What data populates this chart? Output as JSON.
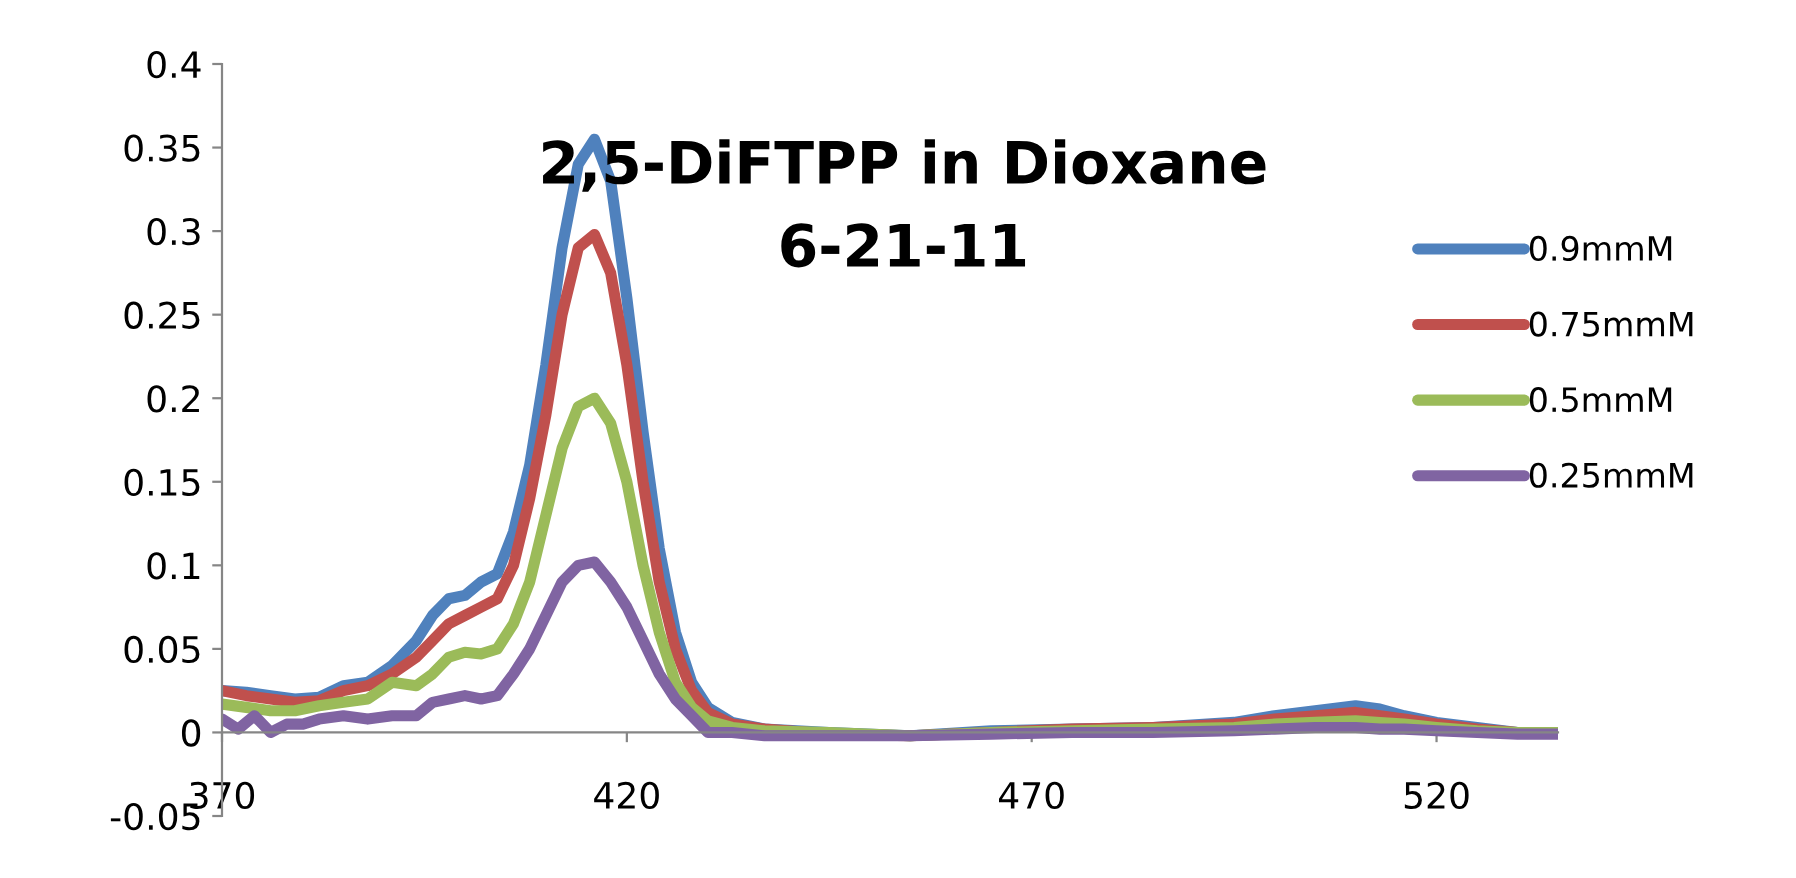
{
  "chart_data": {
    "type": "line",
    "title": "2,5-DiFTPP in Dioxane\n6-21-11",
    "xlim": [
      370,
      535
    ],
    "ylim": [
      -0.05,
      0.4
    ],
    "xticks": [
      370,
      420,
      470,
      520
    ],
    "yticks": [
      -0.05,
      0,
      0.05,
      0.1,
      0.15,
      0.2,
      0.25,
      0.3,
      0.35,
      0.4
    ],
    "grid": false,
    "legend": "right",
    "marker": "none",
    "line_style": "solid",
    "series": [
      {
        "name": "0.9mmM",
        "color": "#4f81bd",
        "x": [
          370,
          373,
          376,
          379,
          382,
          385,
          388,
          391,
          394,
          396,
          398,
          400,
          402,
          404,
          406,
          408,
          410,
          412,
          414,
          416,
          418,
          420,
          422,
          424,
          426,
          428,
          430,
          433,
          437,
          445,
          455,
          465,
          475,
          485,
          495,
          500,
          505,
          510,
          513,
          516,
          520,
          525,
          530,
          535
        ],
        "values": [
          0.025,
          0.024,
          0.022,
          0.02,
          0.021,
          0.028,
          0.03,
          0.04,
          0.055,
          0.07,
          0.08,
          0.082,
          0.09,
          0.095,
          0.12,
          0.16,
          0.22,
          0.29,
          0.34,
          0.355,
          0.33,
          0.26,
          0.18,
          0.11,
          0.06,
          0.03,
          0.015,
          0.006,
          0.002,
          0.0,
          -0.002,
          0.001,
          0.002,
          0.003,
          0.006,
          0.01,
          0.013,
          0.016,
          0.014,
          0.01,
          0.006,
          0.003,
          0.0,
          0.0
        ]
      },
      {
        "name": "0.75mmM",
        "color": "#c0504d",
        "x": [
          370,
          373,
          376,
          379,
          382,
          385,
          388,
          391,
          394,
          396,
          398,
          400,
          402,
          404,
          406,
          408,
          410,
          412,
          414,
          416,
          418,
          420,
          422,
          424,
          426,
          428,
          430,
          433,
          437,
          445,
          455,
          465,
          475,
          485,
          495,
          500,
          505,
          510,
          513,
          516,
          520,
          525,
          530,
          535
        ],
        "values": [
          0.025,
          0.022,
          0.02,
          0.018,
          0.019,
          0.025,
          0.028,
          0.035,
          0.045,
          0.055,
          0.065,
          0.07,
          0.075,
          0.08,
          0.1,
          0.14,
          0.19,
          0.25,
          0.29,
          0.298,
          0.275,
          0.22,
          0.15,
          0.09,
          0.05,
          0.025,
          0.012,
          0.005,
          0.002,
          -0.001,
          -0.002,
          0.0,
          0.002,
          0.003,
          0.005,
          0.008,
          0.01,
          0.012,
          0.01,
          0.008,
          0.005,
          0.002,
          0.0,
          0.0
        ]
      },
      {
        "name": "0.5mmM",
        "color": "#9bbb59",
        "x": [
          370,
          373,
          376,
          379,
          382,
          385,
          388,
          391,
          394,
          396,
          398,
          400,
          402,
          404,
          406,
          408,
          410,
          412,
          414,
          416,
          418,
          420,
          422,
          424,
          426,
          428,
          430,
          433,
          437,
          445,
          455,
          465,
          475,
          485,
          495,
          500,
          505,
          510,
          513,
          516,
          520,
          525,
          530,
          535
        ],
        "values": [
          0.017,
          0.015,
          0.013,
          0.013,
          0.016,
          0.018,
          0.02,
          0.03,
          0.028,
          0.035,
          0.045,
          0.048,
          0.047,
          0.05,
          0.065,
          0.09,
          0.13,
          0.17,
          0.195,
          0.2,
          0.185,
          0.15,
          0.1,
          0.06,
          0.03,
          0.015,
          0.007,
          0.003,
          0.001,
          0.0,
          -0.002,
          0.0,
          0.001,
          0.002,
          0.003,
          0.005,
          0.006,
          0.007,
          0.006,
          0.005,
          0.003,
          0.001,
          0.0,
          0.0
        ]
      },
      {
        "name": "0.25mmM",
        "color": "#8064a2",
        "x": [
          370,
          372,
          374,
          376,
          378,
          380,
          382,
          385,
          388,
          391,
          394,
          396,
          398,
          400,
          402,
          404,
          406,
          408,
          410,
          412,
          414,
          416,
          418,
          420,
          422,
          424,
          426,
          428,
          430,
          433,
          437,
          445,
          455,
          465,
          475,
          485,
          495,
          500,
          505,
          510,
          513,
          516,
          520,
          525,
          530,
          535
        ],
        "values": [
          0.008,
          0.002,
          0.01,
          0.0,
          0.005,
          0.005,
          0.008,
          0.01,
          0.008,
          0.01,
          0.01,
          0.018,
          0.02,
          0.022,
          0.02,
          0.022,
          0.035,
          0.05,
          0.07,
          0.09,
          0.1,
          0.102,
          0.09,
          0.075,
          0.055,
          0.035,
          0.02,
          0.01,
          0.0,
          0.0,
          -0.002,
          -0.002,
          -0.002,
          -0.001,
          0.0,
          0.0,
          0.001,
          0.002,
          0.003,
          0.003,
          0.002,
          0.002,
          0.001,
          0.0,
          -0.001,
          -0.001
        ]
      }
    ]
  }
}
